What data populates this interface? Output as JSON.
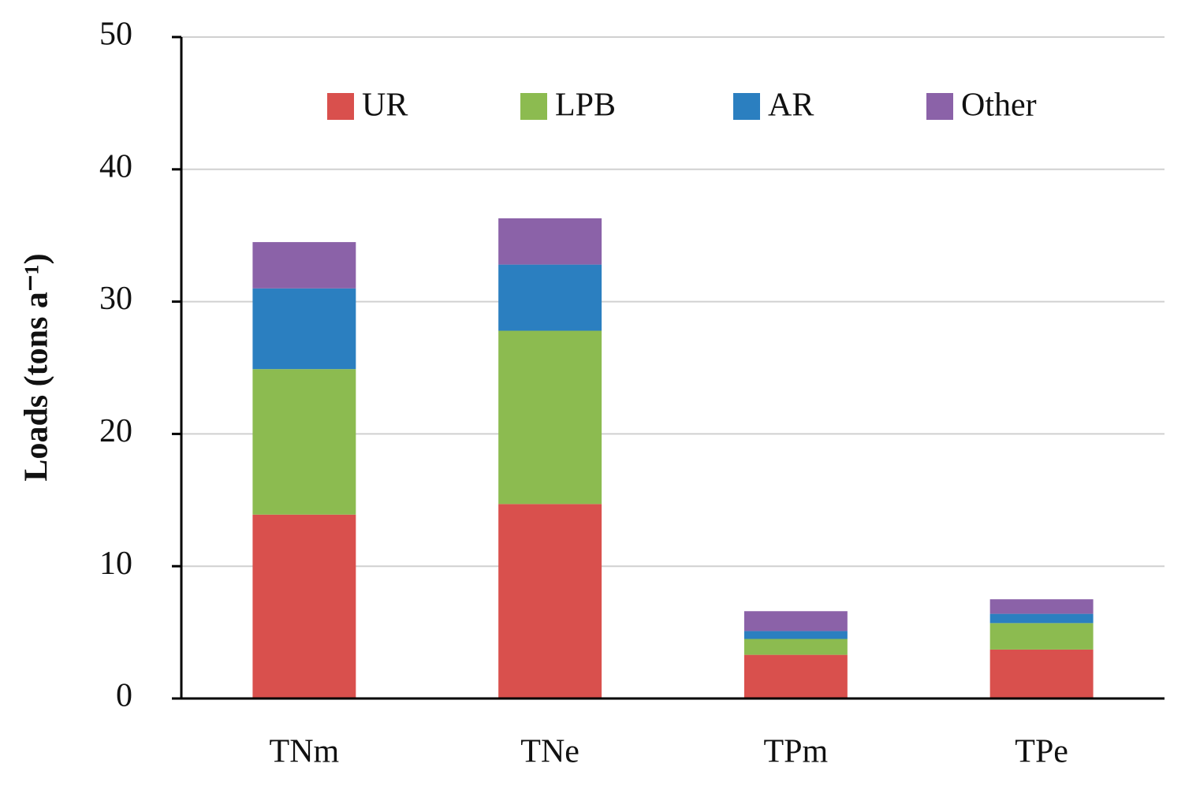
{
  "chart_data": {
    "type": "stacked_bar",
    "y_label": "Loads (tons a⁻¹)",
    "categories": [
      "TNm",
      "TNe",
      "TPm",
      "TPe"
    ],
    "series": [
      {
        "name": "UR",
        "color": "#d9504d",
        "values": [
          13.9,
          14.7,
          3.3,
          3.7
        ]
      },
      {
        "name": "LPB",
        "color": "#8cbb50",
        "values": [
          11.0,
          13.1,
          1.2,
          2.0
        ]
      },
      {
        "name": "AR",
        "color": "#2b7fc0",
        "values": [
          6.1,
          5.0,
          0.6,
          0.7
        ]
      },
      {
        "name": "Other",
        "color": "#8b62a8",
        "values": [
          3.5,
          3.5,
          1.5,
          1.1
        ]
      }
    ],
    "ylim": [
      0,
      50
    ],
    "yticks": [
      0,
      10,
      20,
      30,
      40,
      50
    ],
    "grid": true,
    "legend": "top"
  }
}
